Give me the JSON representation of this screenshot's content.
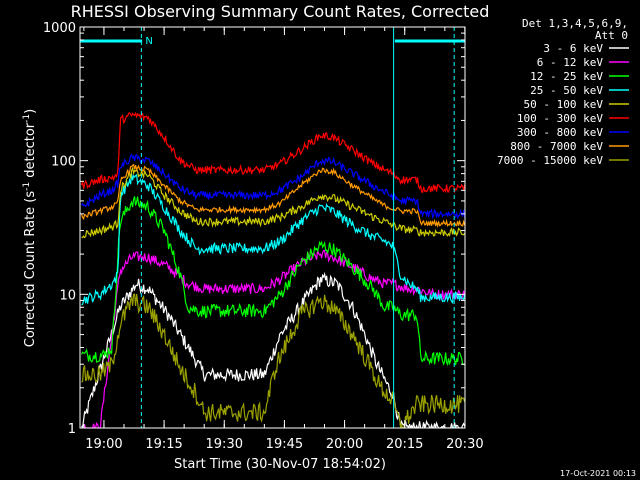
{
  "chart_data": {
    "type": "line",
    "title": "RHESSI Observing Summary Count Rates, Corrected",
    "xlabel": "Start Time (30-Nov-07 18:54:02)",
    "ylabel_main": "Corrected Count Rate (s",
    "ylabel_sup1": "-1",
    "ylabel_mid": " detector",
    "ylabel_sup2": "-1",
    "ylabel_end": ")",
    "ylog": true,
    "ylim": [
      1,
      1000
    ],
    "xlim_min": [
      0,
      96
    ],
    "x_unit": "minutes after 18:54:02",
    "y_ticks": [
      {
        "value": 1,
        "label": "1"
      },
      {
        "value": 10,
        "label": "10"
      },
      {
        "value": 100,
        "label": "100"
      },
      {
        "value": 1000,
        "label": "1000"
      }
    ],
    "x_ticks": [
      {
        "min": 5.97,
        "label": "19:00"
      },
      {
        "min": 20.97,
        "label": "19:15"
      },
      {
        "min": 35.97,
        "label": "19:30"
      },
      {
        "min": 50.97,
        "label": "19:45"
      },
      {
        "min": 65.97,
        "label": "20:00"
      },
      {
        "min": 80.97,
        "label": "20:15"
      },
      {
        "min": 95.97,
        "label": "20:30"
      }
    ],
    "legend_header": [
      "Det 1,3,4,5,6,9,",
      "Att 0"
    ],
    "legend_placement": "right",
    "night_marker_label": "N",
    "attenuator_bars": [
      {
        "from": 0,
        "to": 15.5
      },
      {
        "from": 78.5,
        "to": 96
      }
    ],
    "dashed_markers_min": [
      15.3,
      93.3
    ],
    "solid_markers_min": [
      78.2
    ],
    "series": [
      {
        "name": "3 - 6 keV",
        "color": "#ffffff",
        "noise": 0.05,
        "points": [
          [
            0.4,
            1
          ],
          [
            10,
            8
          ],
          [
            14,
            12
          ],
          [
            17,
            11
          ],
          [
            22,
            7
          ],
          [
            27,
            4
          ],
          [
            31,
            2.5
          ],
          [
            46,
            2.5
          ],
          [
            50,
            5
          ],
          [
            56,
            9
          ],
          [
            60,
            13
          ],
          [
            64,
            12
          ],
          [
            68,
            8
          ],
          [
            71,
            5
          ],
          [
            74,
            3
          ],
          [
            77,
            2
          ],
          [
            78,
            1.8
          ],
          [
            80,
            1
          ],
          [
            96,
            1
          ]
        ]
      },
      {
        "name": "6 - 12 keV",
        "color": "#ff00ff",
        "noise": 0.04,
        "points": [
          [
            0.4,
            1
          ],
          [
            5,
            1
          ],
          [
            10,
            15
          ],
          [
            13,
            19
          ],
          [
            17,
            19
          ],
          [
            22,
            16
          ],
          [
            27,
            12
          ],
          [
            31,
            11
          ],
          [
            46,
            11
          ],
          [
            50,
            13
          ],
          [
            55,
            17
          ],
          [
            60,
            20
          ],
          [
            63,
            19
          ],
          [
            68,
            16
          ],
          [
            73,
            13
          ],
          [
            76,
            12
          ],
          [
            78,
            12
          ],
          [
            82,
            11
          ],
          [
            84,
            11
          ],
          [
            88,
            10
          ],
          [
            96,
            10
          ]
        ]
      },
      {
        "name": "12 - 25 keV",
        "color": "#00ff00",
        "noise": 0.05,
        "points": [
          [
            0.4,
            3.5
          ],
          [
            6,
            3.5
          ],
          [
            8,
            4
          ],
          [
            10,
            35
          ],
          [
            13,
            50
          ],
          [
            17,
            45
          ],
          [
            21,
            30
          ],
          [
            25,
            14
          ],
          [
            27,
            8
          ],
          [
            30,
            7.5
          ],
          [
            46,
            7.5
          ],
          [
            50,
            10
          ],
          [
            55,
            17
          ],
          [
            60,
            23
          ],
          [
            63,
            22
          ],
          [
            68,
            16
          ],
          [
            73,
            11
          ],
          [
            76,
            8
          ],
          [
            78,
            8
          ],
          [
            80,
            7
          ],
          [
            84,
            7
          ],
          [
            85,
            3.3
          ],
          [
            96,
            3.3
          ]
        ]
      },
      {
        "name": "25 - 50 keV",
        "color": "#00ffff",
        "noise": 0.04,
        "points": [
          [
            0.4,
            9
          ],
          [
            5,
            10
          ],
          [
            8,
            12
          ],
          [
            9.5,
            14
          ],
          [
            10,
            55
          ],
          [
            13,
            75
          ],
          [
            17,
            65
          ],
          [
            21,
            45
          ],
          [
            25,
            30
          ],
          [
            29,
            22
          ],
          [
            46,
            22
          ],
          [
            50,
            25
          ],
          [
            55,
            35
          ],
          [
            60,
            45
          ],
          [
            63,
            42
          ],
          [
            68,
            33
          ],
          [
            73,
            27
          ],
          [
            76,
            25
          ],
          [
            78,
            23
          ],
          [
            80,
            14
          ],
          [
            82,
            12
          ],
          [
            84,
            11
          ],
          [
            85,
            9.5
          ],
          [
            96,
            9.5
          ]
        ]
      },
      {
        "name": "50 - 100 keV",
        "color": "#cccc00",
        "noise": 0.03,
        "points": [
          [
            0.4,
            28
          ],
          [
            5,
            30
          ],
          [
            8,
            32
          ],
          [
            9.5,
            34
          ],
          [
            10,
            60
          ],
          [
            13,
            82
          ],
          [
            17,
            78
          ],
          [
            21,
            55
          ],
          [
            25,
            42
          ],
          [
            29,
            35
          ],
          [
            46,
            35
          ],
          [
            50,
            38
          ],
          [
            55,
            45
          ],
          [
            60,
            55
          ],
          [
            63,
            53
          ],
          [
            68,
            45
          ],
          [
            73,
            38
          ],
          [
            76,
            35
          ],
          [
            78,
            33
          ],
          [
            80,
            31
          ],
          [
            84,
            30
          ],
          [
            85,
            29
          ],
          [
            96,
            29
          ]
        ]
      },
      {
        "name": "100 - 300 keV",
        "color": "#ff0000",
        "noise": 0.03,
        "points": [
          [
            0.4,
            65
          ],
          [
            5,
            72
          ],
          [
            8,
            75
          ],
          [
            9.5,
            78
          ],
          [
            10,
            200
          ],
          [
            13,
            220
          ],
          [
            17,
            210
          ],
          [
            21,
            150
          ],
          [
            25,
            100
          ],
          [
            29,
            85
          ],
          [
            46,
            85
          ],
          [
            50,
            95
          ],
          [
            55,
            120
          ],
          [
            60,
            155
          ],
          [
            63,
            150
          ],
          [
            68,
            120
          ],
          [
            73,
            95
          ],
          [
            76,
            85
          ],
          [
            78,
            80
          ],
          [
            80,
            72
          ],
          [
            84,
            72
          ],
          [
            85,
            62
          ],
          [
            96,
            62
          ]
        ]
      },
      {
        "name": "300 - 800 keV",
        "color": "#0000ff",
        "noise": 0.03,
        "points": [
          [
            0.4,
            45
          ],
          [
            5,
            55
          ],
          [
            8,
            60
          ],
          [
            9.5,
            68
          ],
          [
            10,
            90
          ],
          [
            13,
            105
          ],
          [
            17,
            100
          ],
          [
            21,
            80
          ],
          [
            25,
            62
          ],
          [
            29,
            55
          ],
          [
            46,
            55
          ],
          [
            50,
            60
          ],
          [
            55,
            75
          ],
          [
            60,
            100
          ],
          [
            63,
            98
          ],
          [
            68,
            80
          ],
          [
            73,
            65
          ],
          [
            76,
            58
          ],
          [
            78,
            54
          ],
          [
            80,
            50
          ],
          [
            84,
            50
          ],
          [
            85,
            40
          ],
          [
            96,
            40
          ]
        ]
      },
      {
        "name": "800 - 7000 keV",
        "color": "#ff9900",
        "noise": 0.02,
        "points": [
          [
            0.4,
            38
          ],
          [
            5,
            42
          ],
          [
            8,
            45
          ],
          [
            9.5,
            48
          ],
          [
            10,
            70
          ],
          [
            13,
            90
          ],
          [
            17,
            85
          ],
          [
            21,
            65
          ],
          [
            25,
            50
          ],
          [
            29,
            43
          ],
          [
            46,
            43
          ],
          [
            50,
            48
          ],
          [
            55,
            65
          ],
          [
            60,
            85
          ],
          [
            63,
            83
          ],
          [
            68,
            65
          ],
          [
            73,
            52
          ],
          [
            76,
            46
          ],
          [
            78,
            44
          ],
          [
            80,
            42
          ],
          [
            84,
            42
          ],
          [
            85,
            34
          ],
          [
            96,
            34
          ]
        ]
      },
      {
        "name": "7000 - 15000 keV",
        "color": "#99a000",
        "noise": 0.07,
        "points": [
          [
            0.4,
            2.5
          ],
          [
            5,
            2.5
          ],
          [
            8,
            3
          ],
          [
            10,
            6
          ],
          [
            13,
            9
          ],
          [
            17,
            8
          ],
          [
            21,
            5
          ],
          [
            25,
            2.8
          ],
          [
            29,
            1.8
          ],
          [
            31,
            1.3
          ],
          [
            46,
            1.3
          ],
          [
            49,
            3
          ],
          [
            55,
            7
          ],
          [
            60,
            9
          ],
          [
            63,
            8
          ],
          [
            68,
            5
          ],
          [
            72,
            3
          ],
          [
            75,
            2
          ],
          [
            78,
            1.6
          ],
          [
            80,
            1
          ],
          [
            84,
            1.5
          ],
          [
            96,
            1.5
          ]
        ]
      }
    ]
  },
  "timestamp": "17-Oct-2021 00:13"
}
